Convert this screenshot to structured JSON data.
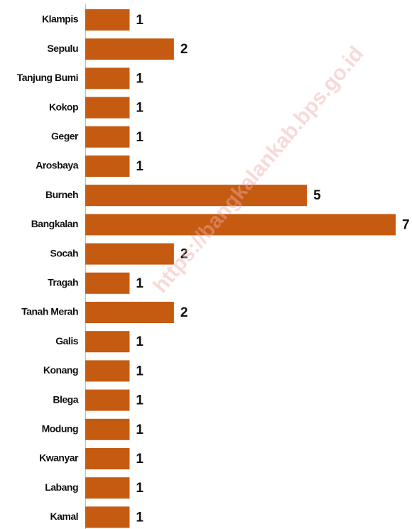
{
  "chart_data": {
    "type": "barh",
    "categories": [
      "Klampis",
      "Sepulu",
      "Tanjung Bumi",
      "Kokop",
      "Geger",
      "Arosbaya",
      "Burneh",
      "Bangkalan",
      "Socah",
      "Tragah",
      "Tanah Merah",
      "Galis",
      "Konang",
      "Blega",
      "Modung",
      "Kwanyar",
      "Labang",
      "Kamal"
    ],
    "values": [
      1,
      2,
      1,
      1,
      1,
      1,
      5,
      7,
      2,
      1,
      2,
      1,
      1,
      1,
      1,
      1,
      1,
      1
    ],
    "color": "#c55a11",
    "xlim": [
      0,
      7
    ],
    "watermark": "https://bangkalankab.bps.go.id"
  }
}
